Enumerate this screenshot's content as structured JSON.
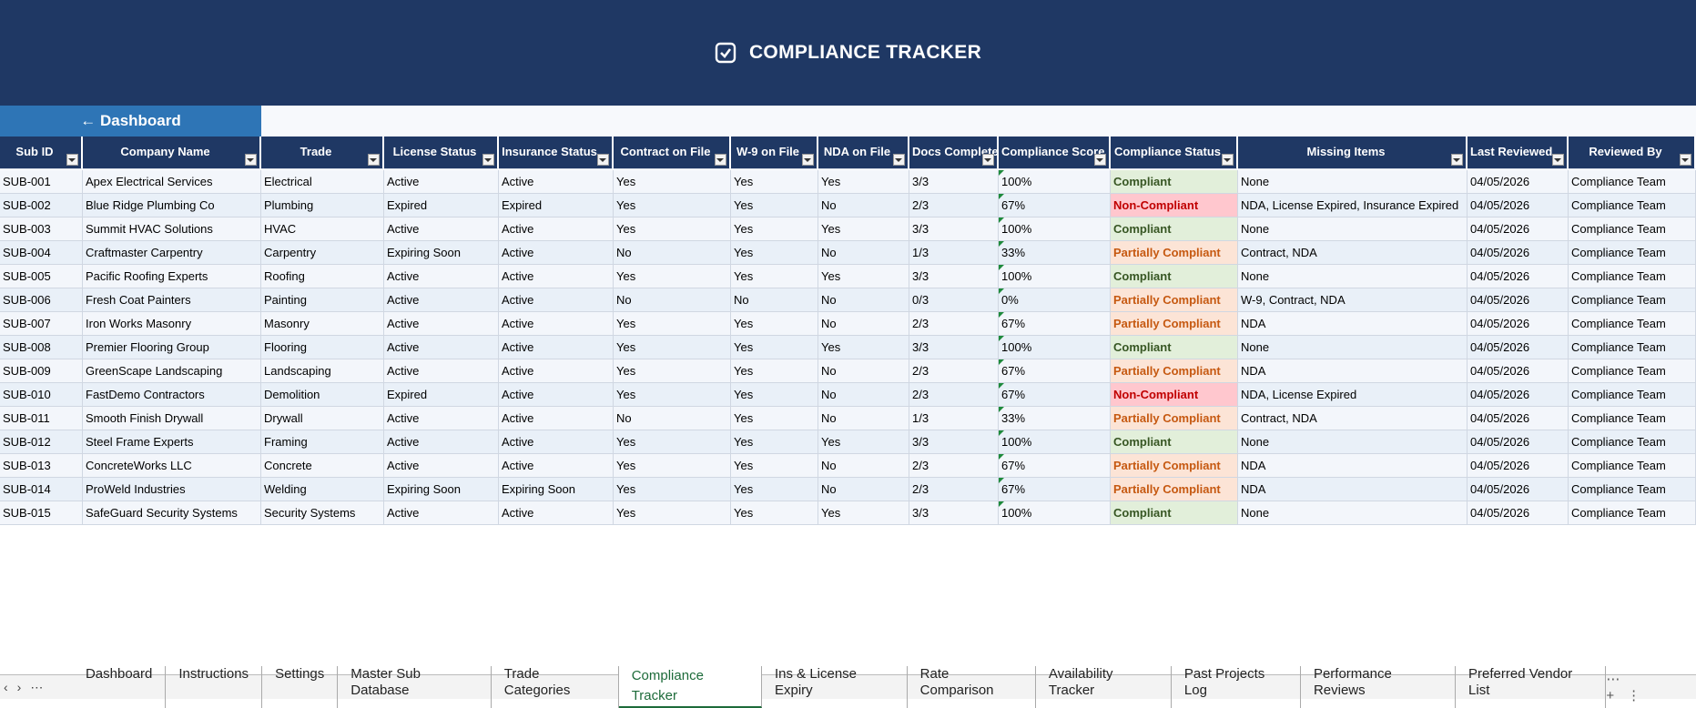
{
  "header": {
    "title": "COMPLIANCE TRACKER"
  },
  "nav": {
    "back": "← Dashboard"
  },
  "table": {
    "columns": [
      "Sub ID",
      "Company Name",
      "Trade",
      "License Status",
      "Insurance Status",
      "Contract on File",
      "W-9 on File",
      "NDA on File",
      "Docs Complete",
      "Compliance Score",
      "Compliance Status",
      "Missing Items",
      "Last Reviewed",
      "Reviewed By"
    ],
    "rows": [
      [
        "SUB-001",
        "Apex Electrical Services",
        "Electrical",
        "Active",
        "Active",
        "Yes",
        "Yes",
        "Yes",
        "3/3",
        "100%",
        "Compliant",
        "None",
        "04/05/2026",
        "Compliance Team"
      ],
      [
        "SUB-002",
        "Blue Ridge Plumbing Co",
        "Plumbing",
        "Expired",
        "Expired",
        "Yes",
        "Yes",
        "No",
        "2/3",
        "67%",
        "Non-Compliant",
        "NDA, License Expired, Insurance Expired",
        "04/05/2026",
        "Compliance Team"
      ],
      [
        "SUB-003",
        "Summit HVAC Solutions",
        "HVAC",
        "Active",
        "Active",
        "Yes",
        "Yes",
        "Yes",
        "3/3",
        "100%",
        "Compliant",
        "None",
        "04/05/2026",
        "Compliance Team"
      ],
      [
        "SUB-004",
        "Craftmaster Carpentry",
        "Carpentry",
        "Expiring Soon",
        "Active",
        "No",
        "Yes",
        "No",
        "1/3",
        "33%",
        "Partially Compliant",
        "Contract, NDA",
        "04/05/2026",
        "Compliance Team"
      ],
      [
        "SUB-005",
        "Pacific Roofing Experts",
        "Roofing",
        "Active",
        "Active",
        "Yes",
        "Yes",
        "Yes",
        "3/3",
        "100%",
        "Compliant",
        "None",
        "04/05/2026",
        "Compliance Team"
      ],
      [
        "SUB-006",
        "Fresh Coat Painters",
        "Painting",
        "Active",
        "Active",
        "No",
        "No",
        "No",
        "0/3",
        "0%",
        "Partially Compliant",
        "W-9, Contract, NDA",
        "04/05/2026",
        "Compliance Team"
      ],
      [
        "SUB-007",
        "Iron Works Masonry",
        "Masonry",
        "Active",
        "Active",
        "Yes",
        "Yes",
        "No",
        "2/3",
        "67%",
        "Partially Compliant",
        "NDA",
        "04/05/2026",
        "Compliance Team"
      ],
      [
        "SUB-008",
        "Premier Flooring Group",
        "Flooring",
        "Active",
        "Active",
        "Yes",
        "Yes",
        "Yes",
        "3/3",
        "100%",
        "Compliant",
        "None",
        "04/05/2026",
        "Compliance Team"
      ],
      [
        "SUB-009",
        "GreenScape Landscaping",
        "Landscaping",
        "Active",
        "Active",
        "Yes",
        "Yes",
        "No",
        "2/3",
        "67%",
        "Partially Compliant",
        "NDA",
        "04/05/2026",
        "Compliance Team"
      ],
      [
        "SUB-010",
        "FastDemo Contractors",
        "Demolition",
        "Expired",
        "Active",
        "Yes",
        "Yes",
        "No",
        "2/3",
        "67%",
        "Non-Compliant",
        "NDA, License Expired",
        "04/05/2026",
        "Compliance Team"
      ],
      [
        "SUB-011",
        "Smooth Finish Drywall",
        "Drywall",
        "Active",
        "Active",
        "No",
        "Yes",
        "No",
        "1/3",
        "33%",
        "Partially Compliant",
        "Contract, NDA",
        "04/05/2026",
        "Compliance Team"
      ],
      [
        "SUB-012",
        "Steel Frame Experts",
        "Framing",
        "Active",
        "Active",
        "Yes",
        "Yes",
        "Yes",
        "3/3",
        "100%",
        "Compliant",
        "None",
        "04/05/2026",
        "Compliance Team"
      ],
      [
        "SUB-013",
        "ConcreteWorks LLC",
        "Concrete",
        "Active",
        "Active",
        "Yes",
        "Yes",
        "No",
        "2/3",
        "67%",
        "Partially Compliant",
        "NDA",
        "04/05/2026",
        "Compliance Team"
      ],
      [
        "SUB-014",
        "ProWeld Industries",
        "Welding",
        "Expiring Soon",
        "Expiring Soon",
        "Yes",
        "Yes",
        "No",
        "2/3",
        "67%",
        "Partially Compliant",
        "NDA",
        "04/05/2026",
        "Compliance Team"
      ],
      [
        "SUB-015",
        "SafeGuard Security Systems",
        "Security Systems",
        "Active",
        "Active",
        "Yes",
        "Yes",
        "Yes",
        "3/3",
        "100%",
        "Compliant",
        "None",
        "04/05/2026",
        "Compliance Team"
      ]
    ],
    "status_tones": [
      "green",
      "red",
      "green",
      "orange",
      "green",
      "orange",
      "orange",
      "green",
      "orange",
      "red",
      "orange",
      "green",
      "orange",
      "orange",
      "green"
    ]
  },
  "tabs": {
    "items": [
      "Dashboard",
      "Instructions",
      "Settings",
      "Master Sub Database",
      "Trade Categories",
      "Compliance Tracker",
      "Ins & License Expiry",
      "Rate Comparison",
      "Availability Tracker",
      "Past Projects Log",
      "Performance Reviews",
      "Preferred Vendor List"
    ],
    "active": 5
  }
}
